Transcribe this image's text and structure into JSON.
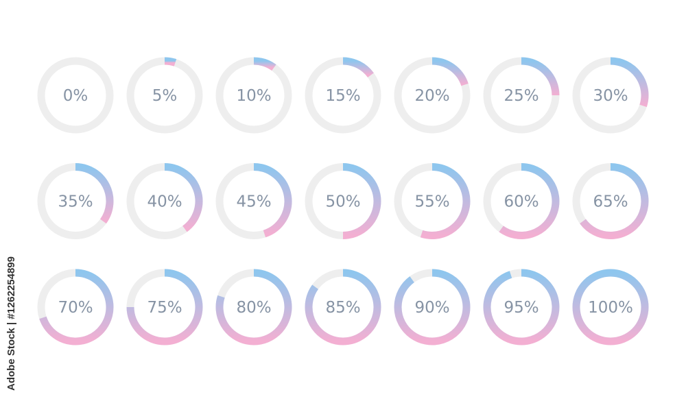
{
  "rings": [
    {
      "value": 0,
      "label": "0%"
    },
    {
      "value": 5,
      "label": "5%"
    },
    {
      "value": 10,
      "label": "10%"
    },
    {
      "value": 15,
      "label": "15%"
    },
    {
      "value": 20,
      "label": "20%"
    },
    {
      "value": 25,
      "label": "25%"
    },
    {
      "value": 30,
      "label": "30%"
    },
    {
      "value": 35,
      "label": "35%"
    },
    {
      "value": 40,
      "label": "40%"
    },
    {
      "value": 45,
      "label": "45%"
    },
    {
      "value": 50,
      "label": "50%"
    },
    {
      "value": 55,
      "label": "55%"
    },
    {
      "value": 60,
      "label": "60%"
    },
    {
      "value": 65,
      "label": "65%"
    },
    {
      "value": 70,
      "label": "70%"
    },
    {
      "value": 75,
      "label": "75%"
    },
    {
      "value": 80,
      "label": "80%"
    },
    {
      "value": 85,
      "label": "85%"
    },
    {
      "value": 90,
      "label": "90%"
    },
    {
      "value": 95,
      "label": "95%"
    },
    {
      "value": 100,
      "label": "100%"
    }
  ],
  "colors": {
    "track": "#eeeeee",
    "gradient_start": "#8ec6ee",
    "gradient_end": "#f3afd2",
    "text": "#8693a4"
  },
  "watermark": "Adobe Stock | #1262254899"
}
